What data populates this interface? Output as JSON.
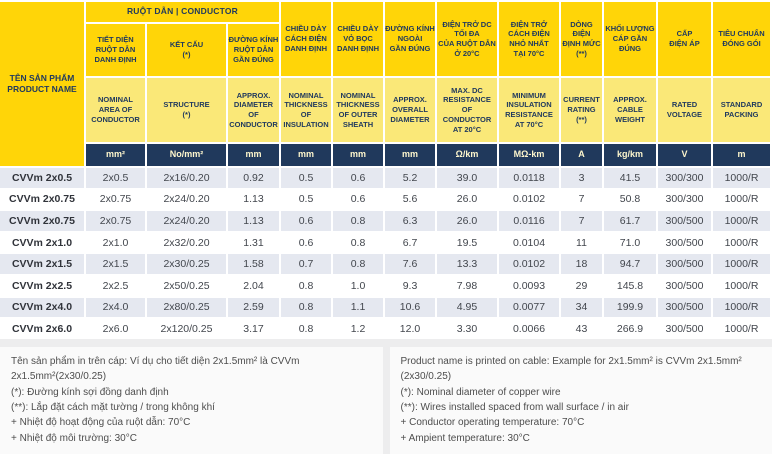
{
  "table": {
    "product_col_header": "TÊN SẢN PHẨM\nPRODUCT NAME",
    "group_header": "RUỘT DẪN  |  CONDUCTOR",
    "columns": [
      {
        "vn": "TIẾT DIỆN\nRUỘT DẪN\nDANH ĐỊNH",
        "en": "NOMINAL\nAREA OF\nCONDUCTOR",
        "unit": "mm²"
      },
      {
        "vn": "KẾT CẤU\n(*)",
        "en": "STRUCTURE\n(*)",
        "unit": "No/mm²"
      },
      {
        "vn": "ĐƯỜNG KÍNH\nRUỘT DẪN\nGẦN ĐÚNG",
        "en": "APPROX.\nDIAMETER OF\nCONDUCTOR",
        "unit": "mm"
      },
      {
        "vn": "CHIỀU DÀY\nCÁCH ĐIỆN\nDANH ĐỊNH",
        "en": "NOMINAL\nTHICKNESS\nOF\nINSULATION",
        "unit": "mm"
      },
      {
        "vn": "CHIỀU DÀY\nVỎ BỌC\nDANH ĐỊNH",
        "en": "NOMINAL\nTHICKNESS\nOF OUTER\nSHEATH",
        "unit": "mm"
      },
      {
        "vn": "ĐƯỜNG KÍNH\nNGOÀI\nGẦN ĐÚNG",
        "en": "APPROX.\nOVERALL\nDIAMETER",
        "unit": "mm"
      },
      {
        "vn": "ĐIỆN TRỞ DC\nTỐI ĐA\nCỦA RUỘT DẪN\nỞ 20°C",
        "en": "MAX. DC\nRESISTANCE\nOF CONDUCTOR\nAT 20°C",
        "unit": "Ω/km"
      },
      {
        "vn": "ĐIỆN TRỞ\nCÁCH ĐIỆN\nNHỎ NHẤT\nTẠI 70°C",
        "en": "MINIMUM\nINSULATION\nRESISTANCE\nAT 70°C",
        "unit": "MΩ-km"
      },
      {
        "vn": "DÒNG ĐIỆN\nĐỊNH MỨC\n(**)",
        "en": "CURRENT\nRATING\n(**)",
        "unit": "A"
      },
      {
        "vn": "KHỐI LƯỢNG\nCÁP GẦN\nĐÚNG",
        "en": "APPROX.\nCABLE\nWEIGHT",
        "unit": "kg/km"
      },
      {
        "vn": "CẤP\nĐIỆN ÁP",
        "en": "RATED\nVOLTAGE",
        "unit": "V"
      },
      {
        "vn": "TIÊU CHUẨN\nĐÓNG GÓI",
        "en": "STANDARD\nPACKING",
        "unit": "m"
      }
    ],
    "rows": [
      [
        "CVVm 2x0.5",
        "2x0.5",
        "2x16/0.20",
        "0.92",
        "0.5",
        "0.6",
        "5.2",
        "39.0",
        "0.0118",
        "3",
        "41.5",
        "300/300",
        "1000/R"
      ],
      [
        "CVVm 2x0.75",
        "2x0.75",
        "2x24/0.20",
        "1.13",
        "0.5",
        "0.6",
        "5.6",
        "26.0",
        "0.0102",
        "7",
        "50.8",
        "300/300",
        "1000/R"
      ],
      [
        "CVVm 2x0.75",
        "2x0.75",
        "2x24/0.20",
        "1.13",
        "0.6",
        "0.8",
        "6.3",
        "26.0",
        "0.0116",
        "7",
        "61.7",
        "300/500",
        "1000/R"
      ],
      [
        "CVVm 2x1.0",
        "2x1.0",
        "2x32/0.20",
        "1.31",
        "0.6",
        "0.8",
        "6.7",
        "19.5",
        "0.0104",
        "11",
        "71.0",
        "300/500",
        "1000/R"
      ],
      [
        "CVVm 2x1.5",
        "2x1.5",
        "2x30/0.25",
        "1.58",
        "0.7",
        "0.8",
        "7.6",
        "13.3",
        "0.0102",
        "18",
        "94.7",
        "300/500",
        "1000/R"
      ],
      [
        "CVVm 2x2.5",
        "2x2.5",
        "2x50/0.25",
        "2.04",
        "0.8",
        "1.0",
        "9.3",
        "7.98",
        "0.0093",
        "29",
        "145.8",
        "300/500",
        "1000/R"
      ],
      [
        "CVVm 2x4.0",
        "2x4.0",
        "2x80/0.25",
        "2.59",
        "0.8",
        "1.1",
        "10.6",
        "4.95",
        "0.0077",
        "34",
        "199.9",
        "300/500",
        "1000/R"
      ],
      [
        "CVVm 2x6.0",
        "2x6.0",
        "2x120/0.25",
        "3.17",
        "0.8",
        "1.2",
        "12.0",
        "3.30",
        "0.0066",
        "43",
        "266.9",
        "300/500",
        "1000/R"
      ]
    ]
  },
  "notes": {
    "vi": [
      "Tên sản phẩm in trên cáp: Ví dụ cho tiết diện 2x1.5mm² là CVVm 2x1.5mm²(2x30/0.25)",
      "(*): Đường kính sợi đồng danh định",
      "(**): Lắp đặt cách mặt tường / trong không khí",
      "+ Nhiệt độ hoạt động của ruột dẫn: 70°C",
      "+ Nhiệt độ môi trường: 30°C"
    ],
    "en": [
      "Product name is printed on cable: Example for 2x1.5mm² is CVVm 2x1.5mm² (2x30/0.25)",
      "(*): Nominal diameter of copper wire",
      "(**): Wires installed spaced from wall surface / in air",
      "+ Conductor operating temperature: 70°C",
      "+ Ampient temperature: 30°C"
    ]
  },
  "colors": {
    "header_yellow": "#ffd508",
    "header_yellow_light": "#fae878",
    "unit_navy": "#20395c",
    "stripe_gray_blue": "#e5e8f0",
    "header_text_navy": "#213a5e"
  }
}
